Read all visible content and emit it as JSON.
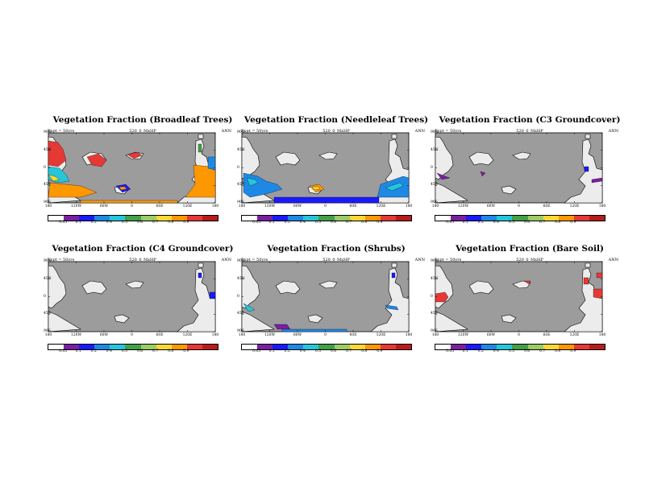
{
  "panels": [
    {
      "title": "Vegetation Fraction (Broadleaf Trees)",
      "left_note": "Expt = 50yrs",
      "center_note": "520_0_MxHP",
      "right_note": "ANN",
      "features": "broadleaf"
    },
    {
      "title": "Vegetation Fraction (Needleleaf Trees)",
      "left_note": "Expt = 50yrs",
      "center_note": "520_0_MxHP",
      "right_note": "ANN",
      "features": "needleleaf"
    },
    {
      "title": "Vegetation Fraction (C3 Groundcover)",
      "left_note": "Expt = 50yrs",
      "center_note": "520_0_MxHP",
      "right_note": "ANN",
      "features": "c3"
    },
    {
      "title": "Vegetation Fraction (C4 Groundcover)",
      "left_note": "Expt = 50yrs",
      "center_note": "520_0_MxHP",
      "right_note": "ANN",
      "features": "c4"
    },
    {
      "title": "Vegetation Fraction (Shrubs)",
      "left_note": "Expt = 50yrs",
      "center_note": "520_0_MxHP",
      "right_note": "ANN",
      "features": "shrubs"
    },
    {
      "title": "Vegetation Fraction (Bare Soil)",
      "left_note": "Expt = 50yrs",
      "center_note": "520_0_MxHP",
      "right_note": "ANN",
      "features": "bare"
    }
  ],
  "axes": {
    "y_ticks": [
      "90N",
      "45N",
      "0",
      "45S",
      "90S"
    ],
    "x_ticks": [
      "180",
      "120W",
      "60W",
      "0",
      "60E",
      "120E",
      "180"
    ]
  },
  "colorbar": {
    "labels": [
      "0.05",
      "0.1",
      "0.2",
      "0.4",
      "0.5",
      "0.6",
      "0.7",
      "0.8",
      "0.9"
    ],
    "colors": [
      "#ffffff",
      "#7b1fa2",
      "#1a1aff",
      "#1e88e5",
      "#26c6da",
      "#43a047",
      "#9ccc65",
      "#fdd835",
      "#ff9800",
      "#e53935",
      "#b71c1c"
    ]
  },
  "colors": {
    "ocean": "#9c9c9c",
    "land_empty": "#ececec"
  }
}
